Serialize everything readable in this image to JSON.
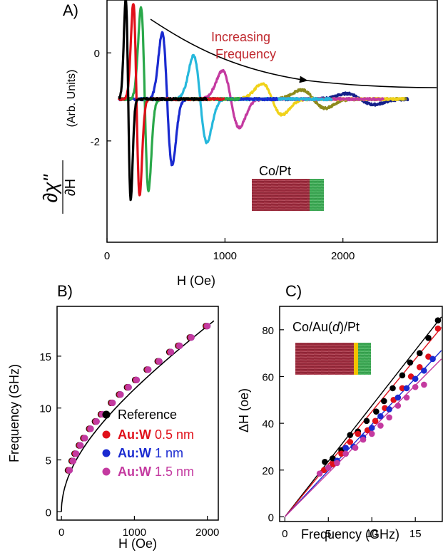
{
  "chart_data": [
    {
      "panel": "A)",
      "type": "line",
      "xlabel": "H (Oe)",
      "ylabel_parts": [
        "∂χ\"",
        "∂H",
        "(Arb. Units)"
      ],
      "xticks": [
        0,
        1000,
        2000
      ],
      "yticks": [
        0,
        -2
      ],
      "xlim": [
        0,
        2800
      ],
      "ylim": [
        -4.3,
        1.2
      ],
      "annotation": [
        "Increasing",
        "Frequency"
      ],
      "sample_label": "Co/Pt",
      "series": [
        {
          "color": "#000000",
          "center": 180,
          "width": 30,
          "amp": 2.2
        },
        {
          "color": "#e0101a",
          "center": 250,
          "width": 38,
          "amp": 2.1
        },
        {
          "color": "#2aa84a",
          "center": 320,
          "width": 45,
          "amp": 2.0
        },
        {
          "color": "#1a2ad0",
          "center": 510,
          "width": 60,
          "amp": 1.45
        },
        {
          "color": "#26b8dc",
          "center": 790,
          "width": 80,
          "amp": 0.95
        },
        {
          "color": "#c43aa0",
          "center": 1050,
          "width": 100,
          "amp": 0.62
        },
        {
          "color": "#f0d21a",
          "center": 1400,
          "width": 120,
          "amp": 0.34
        },
        {
          "color": "#8c8a1c",
          "center": 1750,
          "width": 140,
          "amp": 0.2
        },
        {
          "color": "#15208a",
          "center": 2150,
          "width": 160,
          "amp": 0.12
        }
      ],
      "baseline": -1.05
    },
    {
      "panel": "B)",
      "type": "scatter",
      "xlabel": "H (Oe)",
      "ylabel": "Frequency (GHz)",
      "xticks": [
        0,
        1000,
        2000
      ],
      "yticks": [
        0,
        5,
        10,
        15
      ],
      "xlim": [
        -60,
        2150
      ],
      "ylim": [
        -0.8,
        19.8
      ],
      "legend": [
        {
          "label": "Reference",
          "color": "#000000"
        },
        {
          "label_bold": "Au:W",
          "label_rest": "0.5 nm",
          "color": "#e0101a"
        },
        {
          "label_bold": "Au:W",
          "label_rest": "1 nm",
          "color": "#1a2ad0"
        },
        {
          "label_bold": "Au:W",
          "label_rest": "1.5 nm",
          "color": "#c43aa0"
        }
      ],
      "points_x": [
        110,
        160,
        200,
        260,
        320,
        400,
        480,
        560,
        700,
        810,
        920,
        1030,
        1190,
        1340,
        1500,
        1620,
        1780,
        2000
      ],
      "points_y": [
        4.0,
        4.9,
        5.6,
        6.4,
        7.1,
        8.0,
        8.7,
        9.4,
        10.5,
        11.3,
        12.0,
        12.7,
        13.7,
        14.5,
        15.4,
        16.0,
        16.8,
        17.9
      ],
      "fit": {
        "formula": "kittel",
        "note": "black line through all series"
      }
    },
    {
      "panel": "C)",
      "type": "scatter",
      "xlabel": "Frequency (GHz)",
      "ylabel": "ΔH (oe)",
      "xticks": [
        0,
        5,
        10,
        15
      ],
      "yticks": [
        0,
        20,
        40,
        60,
        80
      ],
      "xlim": [
        -0.6,
        18.1
      ],
      "ylim": [
        -2,
        90
      ],
      "sample_label": "Co/Au(d)/Pt",
      "series": [
        {
          "color": "#000000",
          "x": [
            4.6,
            5.5,
            6.5,
            7.5,
            8.4,
            9.4,
            10.5,
            11.4,
            12.4,
            13.5,
            14.4,
            15.5,
            16.5,
            17.6
          ],
          "y": [
            23.5,
            25,
            28.5,
            35,
            36.5,
            41,
            45,
            49.5,
            55,
            60.5,
            66,
            70,
            76.5,
            84
          ]
        },
        {
          "color": "#e0101a",
          "x": [
            4.5,
            5.5,
            6.5,
            7.5,
            8.4,
            9.5,
            10.4,
            11.5,
            12.5,
            13.5,
            14.5,
            15.5,
            16.5,
            17.6
          ],
          "y": [
            20,
            22.5,
            27,
            32,
            35.5,
            37,
            41,
            46.5,
            50,
            55,
            60,
            64,
            68.5,
            80.5
          ]
        },
        {
          "color": "#1a2ad0",
          "x": [
            5.0,
            6.0,
            7.0,
            7.9,
            9.0,
            10.0,
            11.0,
            12.0,
            13.0,
            14.0,
            15.0,
            16.0,
            17.0
          ],
          "y": [
            21,
            24,
            29.5,
            30,
            34,
            38,
            43,
            46,
            51,
            55,
            59,
            62.5,
            67.5
          ]
        },
        {
          "color": "#c43aa0",
          "x": [
            4.0,
            5.0,
            6.0,
            7.0,
            8.1,
            9.0,
            10.0,
            11.0,
            12.0,
            13.0,
            14.0,
            15.0,
            16.0
          ],
          "y": [
            18.5,
            21,
            23,
            27,
            29.5,
            33,
            35.5,
            39,
            42.5,
            47.5,
            51,
            55.5,
            56.5
          ]
        }
      ],
      "fits": [
        {
          "color": "#000000",
          "slope": 4.75
        },
        {
          "color": "#e0101a",
          "slope": 4.5
        },
        {
          "color": "#1a2ad0",
          "slope": 3.95
        },
        {
          "color": "#c43aa0",
          "slope": 3.75
        }
      ]
    }
  ],
  "colors": {
    "co_layer": "#9b2a3c",
    "pt_layer": "#3daa55",
    "au_layer": "#f2c200",
    "annotation": "#c0282e"
  }
}
